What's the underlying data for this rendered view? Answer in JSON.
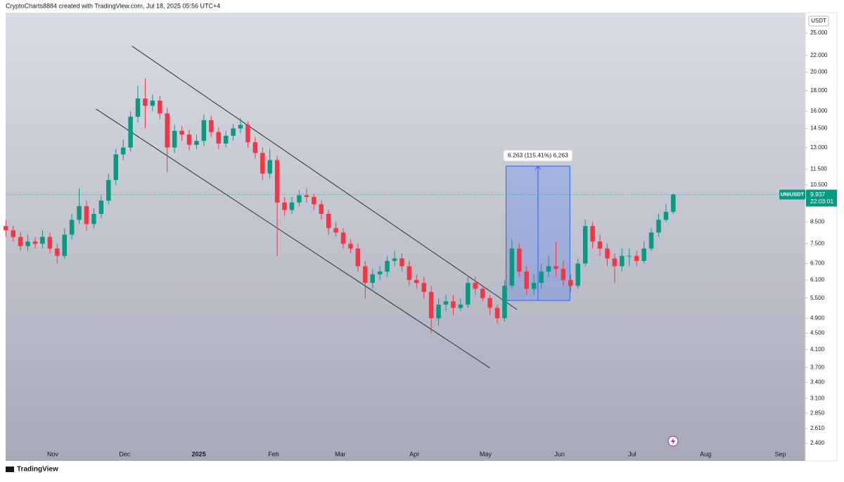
{
  "header": "CryptoCharts8884 created with TradingView.com, Jul 18, 2025 05:56 UTC+4",
  "footer": "TradingView",
  "chart_data": {
    "type": "candlestick",
    "symbol": "UNIUSDT",
    "currency": "USDT",
    "log_scale": true,
    "up_color": "#089981",
    "down_color": "#f23645",
    "open": [
      8.3,
      8.1,
      7.8,
      7.4,
      7.6,
      7.5,
      7.8,
      7.3,
      7.0,
      7.9,
      8.6,
      9.3,
      8.4,
      8.9,
      9.6,
      10.8,
      12.5,
      13.0,
      15.5,
      17.2,
      16.5,
      17.0,
      15.8,
      13.0,
      14.3,
      14.0,
      13.2,
      13.5,
      15.2,
      14.2,
      13.3,
      13.9,
      14.5,
      14.8,
      13.4,
      12.6,
      11.2,
      12.1,
      9.5,
      9.1,
      9.5,
      9.9,
      9.8,
      9.4,
      8.9,
      8.2,
      8.0,
      7.5,
      7.3,
      6.6,
      6.0,
      6.3,
      6.4,
      6.8,
      6.9,
      6.6,
      6.1,
      6.0,
      5.7,
      4.9,
      5.3,
      5.4,
      5.2,
      5.3,
      6.0,
      5.8,
      5.5,
      5.2,
      4.9,
      5.9,
      7.3,
      6.4,
      5.8,
      6.0,
      6.4,
      6.6,
      6.5,
      6.1,
      5.9,
      6.7,
      8.3,
      7.6,
      7.3,
      6.9,
      6.6,
      7.0,
      7.0,
      6.8,
      7.3,
      8.0,
      8.6,
      9.0
    ],
    "high": [
      8.6,
      8.3,
      8.0,
      7.9,
      7.8,
      8.1,
      8.0,
      7.5,
      8.2,
      8.9,
      10.3,
      9.6,
      9.2,
      9.9,
      11.2,
      12.9,
      13.6,
      16.0,
      18.5,
      19.3,
      17.6,
      17.5,
      16.3,
      14.8,
      14.7,
      14.4,
      14.0,
      15.7,
      15.6,
      14.6,
      14.3,
      14.9,
      15.4,
      15.1,
      13.8,
      13.0,
      12.9,
      12.4,
      9.8,
      9.8,
      10.2,
      10.3,
      10.0,
      9.6,
      9.1,
      8.5,
      8.2,
      7.7,
      7.5,
      6.8,
      6.5,
      6.6,
      7.0,
      7.2,
      7.1,
      6.8,
      6.3,
      6.2,
      5.9,
      5.5,
      5.6,
      5.6,
      5.5,
      6.2,
      6.2,
      5.9,
      5.6,
      5.3,
      6.1,
      7.7,
      7.5,
      6.6,
      6.3,
      6.7,
      7.0,
      7.6,
      6.8,
      6.3,
      6.9,
      8.6,
      8.5,
      7.9,
      7.5,
      7.1,
      7.3,
      7.3,
      7.2,
      7.6,
      8.2,
      8.9,
      9.4,
      10.0
    ],
    "low": [
      7.8,
      7.6,
      7.2,
      7.2,
      7.3,
      7.3,
      7.1,
      6.7,
      6.9,
      7.7,
      8.4,
      8.1,
      8.2,
      8.7,
      9.4,
      10.5,
      12.1,
      12.7,
      15.0,
      14.5,
      16.0,
      15.3,
      11.3,
      12.6,
      13.5,
      12.8,
      12.9,
      13.1,
      13.8,
      12.9,
      13.0,
      13.5,
      14.1,
      13.0,
      12.2,
      10.8,
      10.9,
      7.0,
      8.8,
      8.9,
      9.3,
      9.5,
      9.1,
      8.6,
      7.9,
      7.8,
      7.3,
      7.1,
      6.4,
      5.5,
      5.8,
      6.1,
      6.2,
      6.6,
      6.4,
      5.9,
      5.8,
      5.5,
      4.5,
      4.7,
      5.1,
      5.0,
      5.1,
      5.2,
      5.6,
      5.4,
      5.0,
      4.75,
      4.8,
      5.8,
      6.2,
      5.6,
      5.6,
      5.8,
      6.2,
      6.2,
      5.9,
      5.7,
      5.8,
      6.6,
      7.3,
      7.0,
      6.6,
      6.0,
      6.4,
      6.6,
      6.6,
      6.7,
      7.2,
      7.8,
      8.5,
      8.9
    ],
    "close": [
      8.1,
      7.8,
      7.4,
      7.6,
      7.5,
      7.8,
      7.3,
      7.0,
      7.9,
      8.6,
      9.3,
      8.4,
      8.9,
      9.6,
      10.8,
      12.5,
      13.0,
      15.5,
      17.2,
      16.5,
      17.0,
      15.8,
      13.0,
      14.3,
      14.0,
      13.2,
      13.5,
      15.2,
      14.2,
      13.3,
      13.9,
      14.5,
      14.8,
      13.4,
      12.6,
      11.2,
      12.1,
      9.5,
      9.1,
      9.5,
      9.9,
      9.8,
      9.4,
      8.9,
      8.2,
      8.0,
      7.5,
      7.3,
      6.6,
      6.0,
      6.3,
      6.4,
      6.8,
      6.9,
      6.6,
      6.1,
      6.0,
      5.7,
      4.9,
      5.3,
      5.4,
      5.2,
      5.3,
      6.0,
      5.8,
      5.5,
      5.2,
      4.9,
      5.9,
      7.3,
      6.4,
      5.8,
      6.0,
      6.4,
      6.6,
      6.5,
      6.1,
      5.9,
      6.7,
      8.3,
      7.6,
      7.3,
      6.9,
      6.6,
      7.0,
      7.0,
      6.8,
      7.3,
      8.0,
      8.6,
      9.0,
      9.937
    ],
    "last_price": 9.937,
    "countdown": "22:03:01",
    "xlim": [
      -0.03,
      109.0
    ],
    "ylim": [
      2.17,
      28.09
    ],
    "xticks": [
      {
        "value": 6.4,
        "label": "Nov"
      },
      {
        "value": 16.2,
        "label": "Dec"
      },
      {
        "value": 26.3,
        "label": "2025"
      },
      {
        "value": 36.5,
        "label": "Feb"
      },
      {
        "value": 45.6,
        "label": "Mar"
      },
      {
        "value": 55.7,
        "label": "Apr"
      },
      {
        "value": 65.4,
        "label": "May"
      },
      {
        "value": 75.5,
        "label": "Jun"
      },
      {
        "value": 85.4,
        "label": "Jul"
      },
      {
        "value": 95.4,
        "label": "Aug"
      },
      {
        "value": 105.6,
        "label": "Sep"
      }
    ],
    "yticks": [
      {
        "value": 25,
        "label": "25.000"
      },
      {
        "value": 22,
        "label": "22.000"
      },
      {
        "value": 20,
        "label": "20.000"
      },
      {
        "value": 18,
        "label": "18.000"
      },
      {
        "value": 16,
        "label": "16.000"
      },
      {
        "value": 14.5,
        "label": "14.500"
      },
      {
        "value": 13,
        "label": "13.000"
      },
      {
        "value": 11.5,
        "label": "11.500"
      },
      {
        "value": 10.5,
        "label": "10.500"
      },
      {
        "value": 8.5,
        "label": "8.500"
      },
      {
        "value": 7.5,
        "label": "7.500"
      },
      {
        "value": 6.7,
        "label": "6.700"
      },
      {
        "value": 6.1,
        "label": "6.100"
      },
      {
        "value": 5.5,
        "label": "5.500"
      },
      {
        "value": 4.9,
        "label": "4.900"
      },
      {
        "value": 4.5,
        "label": "4.500"
      },
      {
        "value": 4.1,
        "label": "4.100"
      },
      {
        "value": 3.7,
        "label": "3.700"
      },
      {
        "value": 3.4,
        "label": "3.400"
      },
      {
        "value": 3.1,
        "label": "3.100"
      },
      {
        "value": 2.85,
        "label": "2.850"
      },
      {
        "value": 2.61,
        "label": "2.610"
      },
      {
        "value": 2.4,
        "label": "2.400"
      }
    ],
    "trendlines": [
      {
        "x": [
          17.2,
          69.7
        ],
        "y": [
          23.2,
          5.15
        ]
      },
      {
        "x": [
          12.3,
          66.0
        ],
        "y": [
          16.2,
          3.69
        ]
      }
    ],
    "measure": {
      "x": [
        68.2,
        76.9
      ],
      "y": [
        5.427,
        11.69
      ],
      "label": "6.263 (115.41%) 6,263"
    }
  }
}
